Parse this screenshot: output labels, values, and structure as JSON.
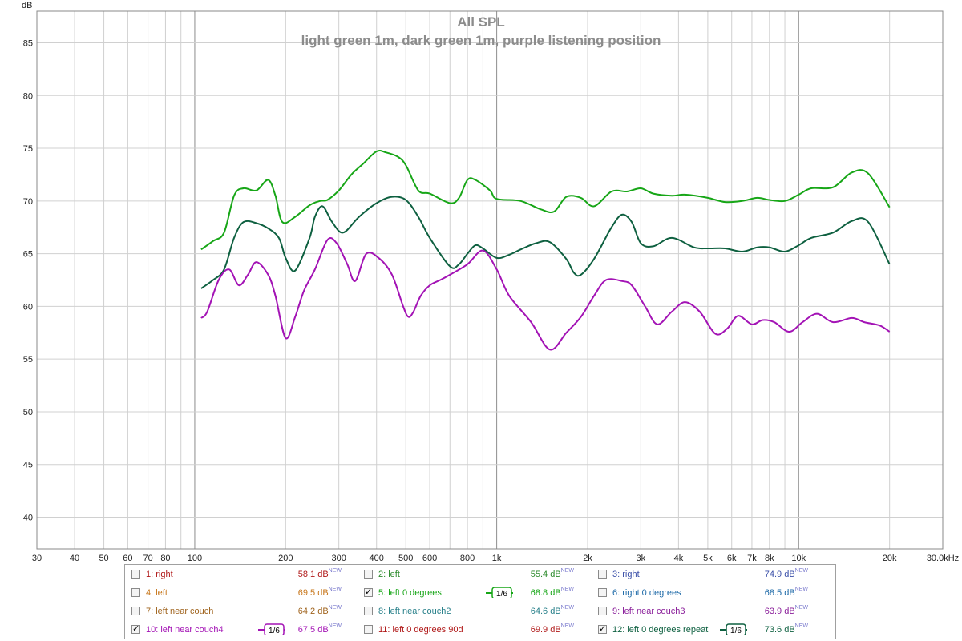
{
  "chart_data": {
    "type": "line",
    "title": "All SPL",
    "subtitle": "light green 1m, dark green 1m, purple listening position",
    "y_unit": "dB",
    "x_unit": "kHz",
    "x_scale": "log",
    "xlim": [
      30,
      30000
    ],
    "ylim": [
      37,
      88
    ],
    "grid": true,
    "x_ticks": [
      {
        "v": 30,
        "label": "30"
      },
      {
        "v": 40,
        "label": "40"
      },
      {
        "v": 50,
        "label": "50"
      },
      {
        "v": 60,
        "label": "60"
      },
      {
        "v": 70,
        "label": "70"
      },
      {
        "v": 80,
        "label": "80"
      },
      {
        "v": 100,
        "label": "100"
      },
      {
        "v": 200,
        "label": "200"
      },
      {
        "v": 300,
        "label": "300"
      },
      {
        "v": 400,
        "label": "400"
      },
      {
        "v": 500,
        "label": "500"
      },
      {
        "v": 600,
        "label": "600"
      },
      {
        "v": 800,
        "label": "800"
      },
      {
        "v": 1000,
        "label": "1k"
      },
      {
        "v": 2000,
        "label": "2k"
      },
      {
        "v": 3000,
        "label": "3k"
      },
      {
        "v": 4000,
        "label": "4k"
      },
      {
        "v": 5000,
        "label": "5k"
      },
      {
        "v": 6000,
        "label": "6k"
      },
      {
        "v": 7000,
        "label": "7k"
      },
      {
        "v": 8000,
        "label": "8k"
      },
      {
        "v": 10000,
        "label": "10k"
      },
      {
        "v": 20000,
        "label": "20k"
      },
      {
        "v": 30000,
        "label": "30.0kHz"
      }
    ],
    "y_ticks": [
      40,
      45,
      50,
      55,
      60,
      65,
      70,
      75,
      80,
      85
    ],
    "series": [
      {
        "name": "5: left 0 degrees",
        "color": "#17a617",
        "x": [
          105,
          115,
          125,
          135,
          145,
          160,
          175,
          185,
          195,
          215,
          240,
          260,
          275,
          300,
          330,
          360,
          400,
          430,
          470,
          500,
          550,
          600,
          700,
          750,
          800,
          850,
          950,
          1000,
          1200,
          1400,
          1550,
          1700,
          1900,
          2100,
          2400,
          2700,
          3000,
          3300,
          3800,
          4200,
          5000,
          5700,
          6500,
          7300,
          8000,
          9000,
          10000,
          11000,
          13000,
          15000,
          17000,
          20000
        ],
        "y": [
          65.4,
          66.2,
          67.0,
          70.5,
          71.2,
          71.0,
          72.0,
          70.5,
          68.0,
          68.5,
          69.6,
          70.0,
          70.1,
          71.0,
          72.5,
          73.5,
          74.7,
          74.6,
          74.2,
          73.4,
          71.0,
          70.7,
          69.8,
          70.3,
          72.0,
          72.0,
          71.0,
          70.2,
          70.0,
          69.2,
          69.0,
          70.4,
          70.3,
          69.5,
          70.9,
          70.9,
          71.2,
          70.7,
          70.5,
          70.6,
          70.3,
          69.9,
          70.0,
          70.3,
          70.1,
          70.0,
          70.6,
          71.2,
          71.3,
          72.7,
          72.6,
          69.4
        ]
      },
      {
        "name": "12: left 0 degrees repeat",
        "color": "#0e6040",
        "x": [
          105,
          115,
          125,
          135,
          145,
          160,
          175,
          190,
          200,
          215,
          240,
          250,
          265,
          285,
          310,
          350,
          400,
          450,
          500,
          550,
          600,
          700,
          750,
          800,
          850,
          900,
          1000,
          1100,
          1200,
          1350,
          1500,
          1700,
          1800,
          1900,
          2100,
          2400,
          2600,
          2800,
          3000,
          3300,
          3800,
          4500,
          5000,
          5700,
          6500,
          7300,
          8000,
          9000,
          10000,
          11000,
          13000,
          15000,
          17000,
          20000
        ],
        "y": [
          61.7,
          62.5,
          63.5,
          66.5,
          68.0,
          67.9,
          67.4,
          66.5,
          64.6,
          63.4,
          66.5,
          68.5,
          69.5,
          68.0,
          67.0,
          68.5,
          69.8,
          70.4,
          70.1,
          68.5,
          66.5,
          63.8,
          64.0,
          65.0,
          65.8,
          65.5,
          64.6,
          64.9,
          65.4,
          66.0,
          66.1,
          64.5,
          63.2,
          63.0,
          64.5,
          67.5,
          68.7,
          68.0,
          66.0,
          65.7,
          66.5,
          65.6,
          65.5,
          65.5,
          65.2,
          65.6,
          65.6,
          65.2,
          65.8,
          66.5,
          67.0,
          68.1,
          68.0,
          64.0
        ]
      },
      {
        "name": "10: left near couch4",
        "color": "#a313b5",
        "x": [
          105,
          110,
          120,
          130,
          140,
          150,
          160,
          175,
          185,
          200,
          215,
          230,
          250,
          275,
          295,
          320,
          340,
          370,
          410,
          450,
          490,
          510,
          530,
          560,
          600,
          650,
          700,
          800,
          900,
          1000,
          1100,
          1300,
          1500,
          1700,
          1900,
          2100,
          2300,
          2600,
          2800,
          3100,
          3400,
          3800,
          4200,
          4700,
          5300,
          5800,
          6300,
          7000,
          7600,
          8300,
          9300,
          10300,
          11500,
          13000,
          15000,
          16500,
          18500,
          20000
        ],
        "y": [
          58.9,
          59.5,
          62.5,
          63.5,
          62.0,
          63.0,
          64.2,
          63.0,
          61.0,
          57.0,
          59.0,
          61.5,
          63.5,
          66.3,
          66.0,
          64.0,
          62.4,
          65.0,
          64.5,
          63.0,
          60.0,
          59.0,
          59.5,
          61.0,
          62.0,
          62.5,
          63.0,
          64.0,
          65.3,
          63.5,
          61.0,
          58.5,
          55.9,
          57.5,
          59.0,
          61.0,
          62.5,
          62.4,
          62.0,
          60.0,
          58.3,
          59.5,
          60.4,
          59.5,
          57.4,
          57.9,
          59.1,
          58.3,
          58.7,
          58.5,
          57.6,
          58.5,
          59.3,
          58.5,
          58.9,
          58.5,
          58.2,
          57.6
        ]
      }
    ],
    "legend": [
      {
        "label": "1: right",
        "value": "58.1 dB",
        "color": "#b01818",
        "checked": false,
        "smoothing": ""
      },
      {
        "label": "2: left",
        "value": "55.4 dB",
        "color": "#2b8a2b",
        "checked": false,
        "smoothing": ""
      },
      {
        "label": "3: right",
        "value": "74.9 dB",
        "color": "#3a4fa8",
        "checked": false,
        "smoothing": ""
      },
      {
        "label": "4: left",
        "value": "69.5 dB",
        "color": "#c8781e",
        "checked": false,
        "smoothing": ""
      },
      {
        "label": "5: left 0 degrees",
        "value": "68.8 dB",
        "color": "#17a617",
        "checked": true,
        "smoothing": "1/6"
      },
      {
        "label": "6: right 0 degrees",
        "value": "68.5 dB",
        "color": "#1e6aa8",
        "checked": false,
        "smoothing": ""
      },
      {
        "label": "7: left near couch",
        "value": "64.2 dB",
        "color": "#a0641e",
        "checked": false,
        "smoothing": ""
      },
      {
        "label": "8: left near couch2",
        "value": "64.6 dB",
        "color": "#28808a",
        "checked": false,
        "smoothing": ""
      },
      {
        "label": "9: left near couch3",
        "value": "63.9 dB",
        "color": "#8a1e9a",
        "checked": false,
        "smoothing": ""
      },
      {
        "label": "10: left near couch4",
        "value": "67.5 dB",
        "color": "#a313b5",
        "checked": true,
        "smoothing": "1/6"
      },
      {
        "label": "11: left 0 degrees 90d",
        "value": "69.9 dB",
        "color": "#b01818",
        "checked": false,
        "smoothing": ""
      },
      {
        "label": "12: left 0 degrees repeat",
        "value": "73.6 dB",
        "color": "#0e6040",
        "checked": true,
        "smoothing": "1/6"
      }
    ],
    "legend_new_tag": "NEW",
    "legend_position": "bottom"
  }
}
